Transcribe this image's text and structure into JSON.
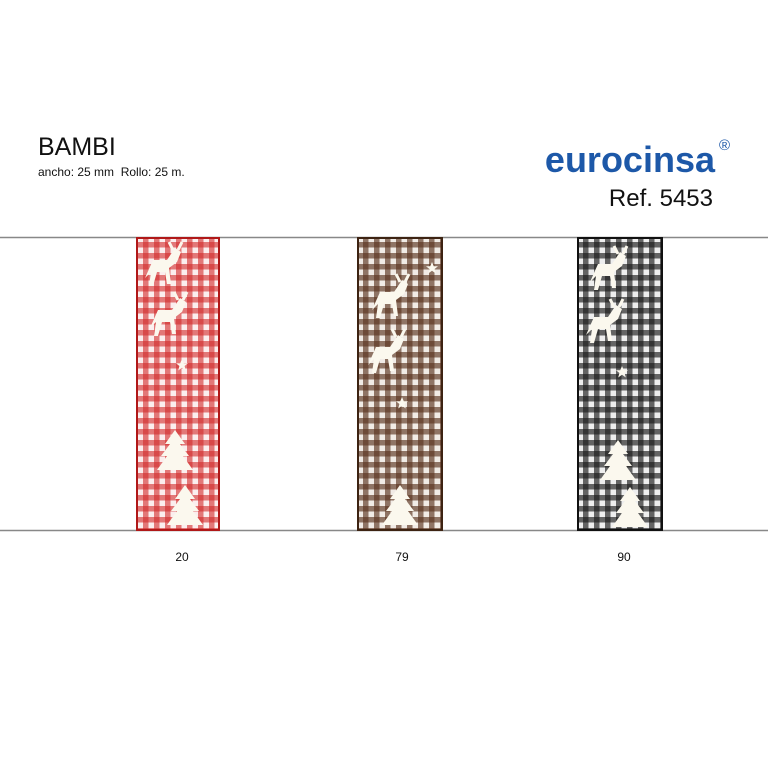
{
  "header": {
    "title": "BAMBI",
    "subtitle": "ancho: 25 mm  Rollo: 25 m."
  },
  "brand": {
    "name": "eurocinsa",
    "mark": "®",
    "ref": "Ref. 5453"
  },
  "ribbons": [
    {
      "code": "20"
    },
    {
      "code": "79"
    },
    {
      "code": "90"
    }
  ]
}
